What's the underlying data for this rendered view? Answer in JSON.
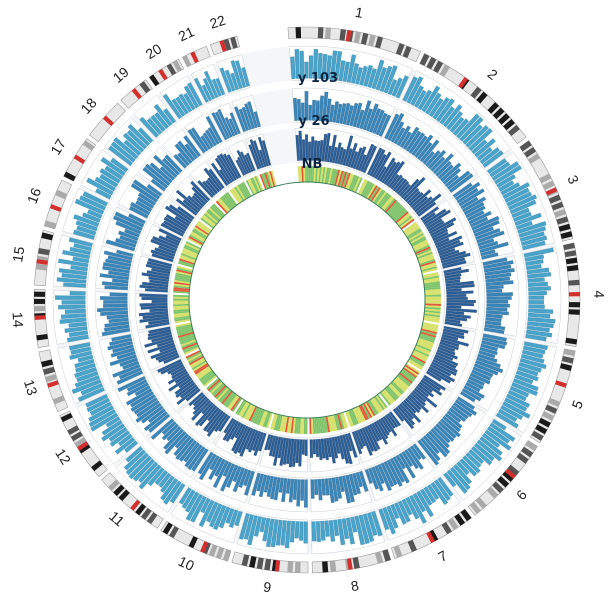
{
  "figure": {
    "type": "circos",
    "tracks": [
      {
        "label": "y 103",
        "color": "#4aa3c9",
        "edge": "#2d7ea8"
      },
      {
        "label": "y 26",
        "color": "#3a86b8",
        "edge": "#245f91"
      },
      {
        "label": "NB",
        "color": "#2b5f97",
        "edge": "#173d6d"
      }
    ],
    "chromosomes": [
      {
        "name": "1",
        "size": 249
      },
      {
        "name": "2",
        "size": 243
      },
      {
        "name": "3",
        "size": 198
      },
      {
        "name": "4",
        "size": 191
      },
      {
        "name": "5",
        "size": 181
      },
      {
        "name": "6",
        "size": 171
      },
      {
        "name": "7",
        "size": 159
      },
      {
        "name": "8",
        "size": 146
      },
      {
        "name": "9",
        "size": 141
      },
      {
        "name": "10",
        "size": 135
      },
      {
        "name": "11",
        "size": 135
      },
      {
        "name": "12",
        "size": 133
      },
      {
        "name": "13",
        "size": 115
      },
      {
        "name": "14",
        "size": 107
      },
      {
        "name": "15",
        "size": 102
      },
      {
        "name": "16",
        "size": 90
      },
      {
        "name": "17",
        "size": 81
      },
      {
        "name": "18",
        "size": 78
      },
      {
        "name": "19",
        "size": 59
      },
      {
        "name": "20",
        "size": 63
      },
      {
        "name": "21",
        "size": 48
      },
      {
        "name": "22",
        "size": 51
      }
    ],
    "colors": {
      "ideogram_dark": "#1a1a1a",
      "ideogram_light": "#e8e8e8",
      "centromere": "#d32f2f",
      "heat_low": "#7fc46a",
      "heat_mid": "#d6e06a",
      "heat_high": "#e05a3a",
      "track_bg": "#f4f6f8"
    }
  }
}
